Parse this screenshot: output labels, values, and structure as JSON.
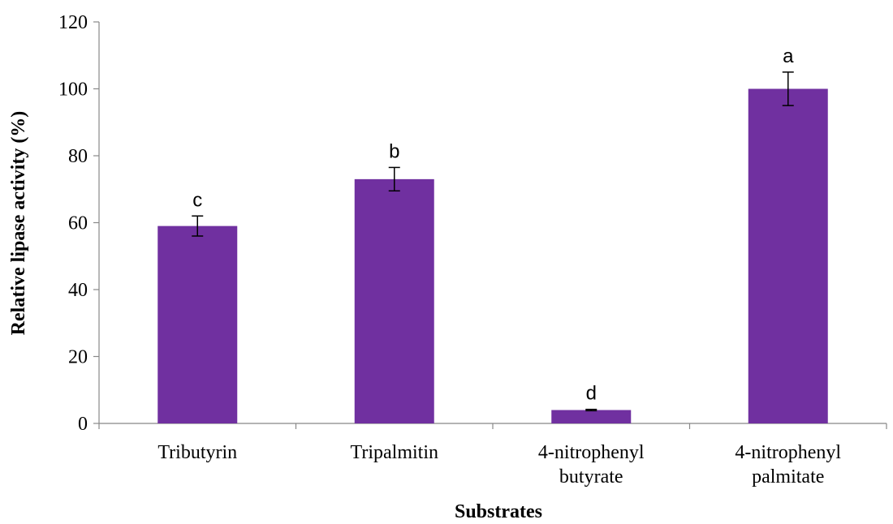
{
  "chart_data": {
    "type": "bar",
    "title": "",
    "xlabel": "Substrates",
    "ylabel": "Relative lipase activity (%)",
    "ylim": [
      0,
      120
    ],
    "yticks": [
      0,
      20,
      40,
      60,
      80,
      100,
      120
    ],
    "grid": false,
    "legend": "none",
    "bar_color": "#7030a0",
    "categories": [
      [
        "Tributyrin"
      ],
      [
        "Tripalmitin"
      ],
      [
        "4-nitrophenyl",
        "butyrate"
      ],
      [
        "4-nitrophenyl",
        "palmitate"
      ]
    ],
    "series": [
      {
        "values": [
          59,
          73,
          4,
          100
        ],
        "error": [
          3,
          3.5,
          0.2,
          5
        ],
        "significance_labels": [
          "c",
          "b",
          "d",
          "a"
        ]
      }
    ]
  }
}
